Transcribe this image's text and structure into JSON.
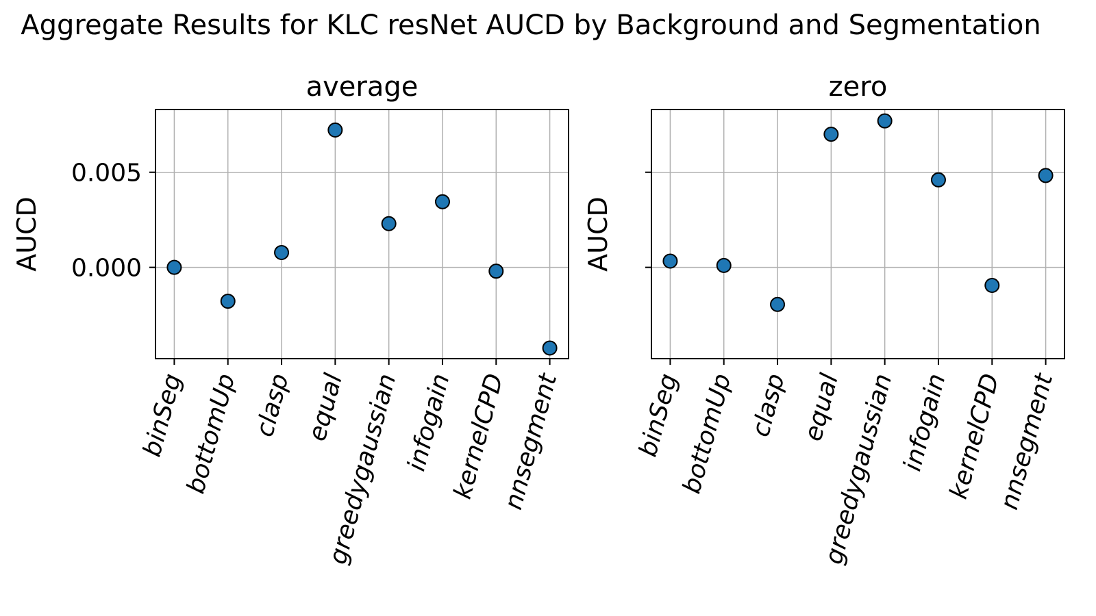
{
  "figure": {
    "title": "Aggregate Results for KLC resNet AUCD by Background and Segmentation"
  },
  "chart_data": [
    {
      "type": "scatter",
      "title": "average",
      "xlabel": "",
      "ylabel": "AUCD",
      "categories": [
        "binSeg",
        "bottomUp",
        "clasp",
        "equal",
        "greedygaussian",
        "infogain",
        "kernelCPD",
        "nnsegment"
      ],
      "values": [
        0.0,
        -0.00178,
        0.00078,
        0.00722,
        0.0023,
        0.00345,
        -0.0002,
        -0.00424
      ],
      "ylim": [
        -0.0048,
        0.0083
      ],
      "yticks": [
        0.0,
        0.005
      ],
      "ytick_labels": [
        "0.000",
        "0.005"
      ],
      "grid": true,
      "marker_color": "#1f77b4"
    },
    {
      "type": "scatter",
      "title": "zero",
      "xlabel": "",
      "ylabel": "AUCD",
      "categories": [
        "binSeg",
        "bottomUp",
        "clasp",
        "equal",
        "greedygaussian",
        "infogain",
        "kernelCPD",
        "nnsegment"
      ],
      "values": [
        0.00033,
        0.0001,
        -0.00195,
        0.007,
        0.0077,
        0.0046,
        -0.00095,
        0.00483
      ],
      "ylim": [
        -0.0048,
        0.0083
      ],
      "yticks": [
        0.0,
        0.005
      ],
      "ytick_labels": [
        "",
        ""
      ],
      "grid": true,
      "marker_color": "#1f77b4"
    }
  ]
}
